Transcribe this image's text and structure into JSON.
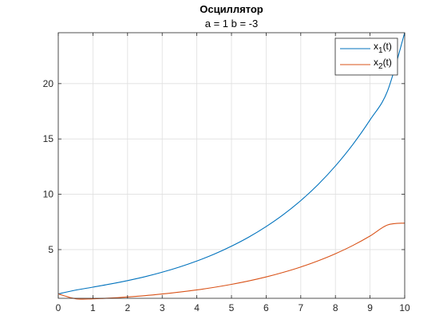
{
  "chart_data": {
    "type": "line",
    "title": "Осциллятор",
    "subtitle": "a = 1 b = -3",
    "xlabel": "",
    "ylabel": "",
    "xlim": [
      0,
      10
    ],
    "ylim": [
      0.6,
      24.6
    ],
    "x_ticks": [
      "0",
      "1",
      "2",
      "3",
      "4",
      "5",
      "6",
      "7",
      "8",
      "9",
      "10"
    ],
    "y_ticks": [
      "5",
      "10",
      "15",
      "20"
    ],
    "grid": true,
    "legend_position": "top-right",
    "x": [
      0,
      0.5,
      1,
      1.5,
      2,
      2.5,
      3,
      3.5,
      4,
      4.5,
      5,
      5.5,
      6,
      6.5,
      7,
      7.5,
      8,
      8.5,
      9,
      9.5,
      10
    ],
    "series": [
      {
        "name": "x",
        "name_sub": "1",
        "name_suffix": "(t)",
        "color": "#0072BD",
        "values": [
          1.0,
          1.34,
          1.61,
          1.89,
          2.2,
          2.55,
          2.96,
          3.43,
          3.97,
          4.59,
          5.31,
          6.13,
          7.08,
          8.17,
          9.43,
          10.88,
          12.56,
          14.49,
          16.72,
          19.3,
          24.6
        ]
      },
      {
        "name": "x",
        "name_sub": "2",
        "name_suffix": "(t)",
        "color": "#D95319",
        "values": [
          1.0,
          0.56,
          0.55,
          0.62,
          0.72,
          0.84,
          0.99,
          1.16,
          1.36,
          1.59,
          1.86,
          2.17,
          2.53,
          2.95,
          3.43,
          3.99,
          4.63,
          5.37,
          6.23,
          7.22,
          7.4
        ]
      }
    ]
  }
}
